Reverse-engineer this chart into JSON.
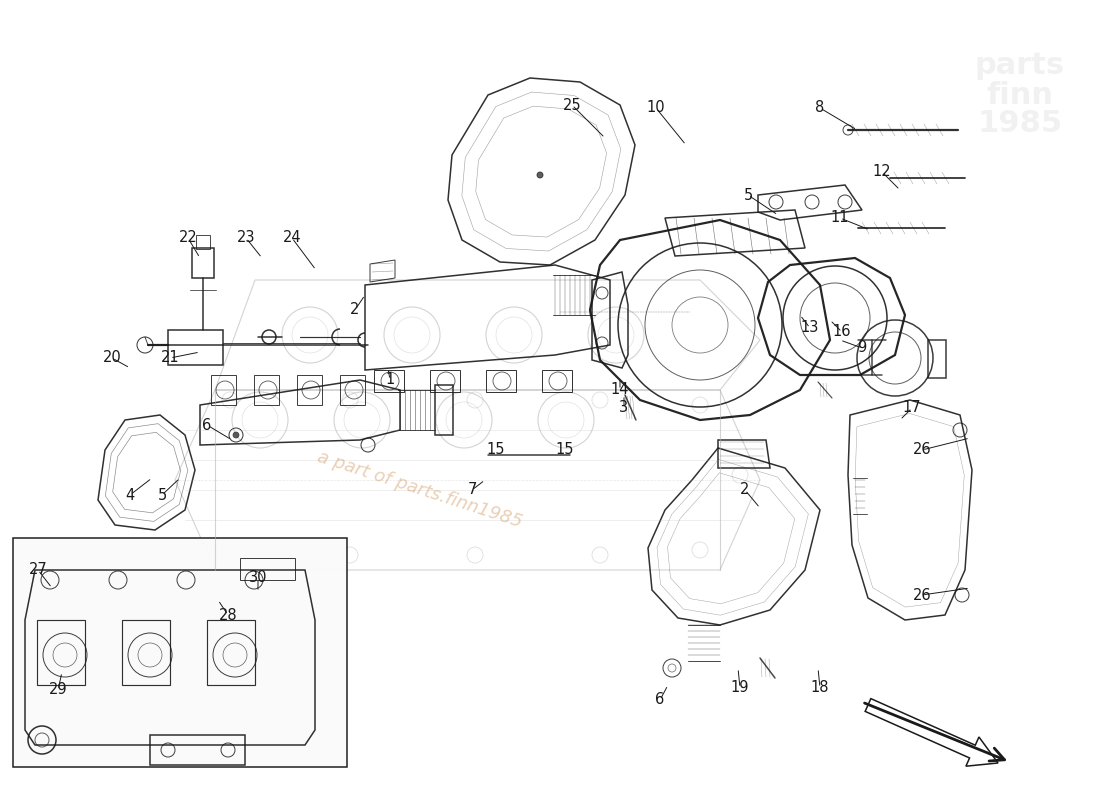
{
  "background_color": "#ffffff",
  "line_color": "#1a1a1a",
  "engine_color": "#c8c8c8",
  "watermark_text": "a part of parts.finn1985",
  "watermark_color": "#cc8844",
  "watermark_alpha": 0.4,
  "logo_alpha": 0.35,
  "label_fontsize": 10.5,
  "lw_thin": 0.7,
  "lw_med": 1.1,
  "lw_thick": 1.6,
  "labels": [
    [
      "1",
      390,
      380,
      388,
      368
    ],
    [
      "2",
      355,
      310,
      365,
      295
    ],
    [
      "2",
      745,
      490,
      760,
      508
    ],
    [
      "3",
      624,
      408,
      624,
      395
    ],
    [
      "4",
      130,
      495,
      152,
      478
    ],
    [
      "5",
      162,
      495,
      180,
      478
    ],
    [
      "5",
      748,
      195,
      778,
      215
    ],
    [
      "6",
      207,
      425,
      232,
      440
    ],
    [
      "6",
      660,
      700,
      668,
      685
    ],
    [
      "7",
      472,
      490,
      485,
      480
    ],
    [
      "8",
      820,
      108,
      857,
      130
    ],
    [
      "9",
      862,
      348,
      840,
      340
    ],
    [
      "10",
      656,
      108,
      686,
      145
    ],
    [
      "11",
      840,
      218,
      870,
      230
    ],
    [
      "12",
      882,
      172,
      900,
      190
    ],
    [
      "13",
      810,
      328,
      800,
      315
    ],
    [
      "14",
      620,
      390,
      620,
      378
    ],
    [
      "15",
      496,
      450,
      500,
      448
    ],
    [
      "15",
      565,
      450,
      562,
      448
    ],
    [
      "16",
      842,
      332,
      830,
      320
    ],
    [
      "17",
      912,
      408,
      900,
      420
    ],
    [
      "18",
      820,
      688,
      818,
      668
    ],
    [
      "19",
      740,
      688,
      738,
      668
    ],
    [
      "20",
      112,
      358,
      130,
      368
    ],
    [
      "21",
      170,
      358,
      200,
      352
    ],
    [
      "22",
      188,
      238,
      200,
      258
    ],
    [
      "23",
      246,
      238,
      262,
      258
    ],
    [
      "24",
      292,
      238,
      316,
      270
    ],
    [
      "25",
      572,
      105,
      605,
      138
    ],
    [
      "26",
      922,
      450,
      970,
      438
    ],
    [
      "26",
      922,
      595,
      970,
      588
    ],
    [
      "27",
      38,
      570,
      52,
      588
    ],
    [
      "28",
      228,
      615,
      218,
      600
    ],
    [
      "29",
      58,
      690,
      62,
      672
    ],
    [
      "30",
      258,
      578,
      258,
      592
    ]
  ]
}
